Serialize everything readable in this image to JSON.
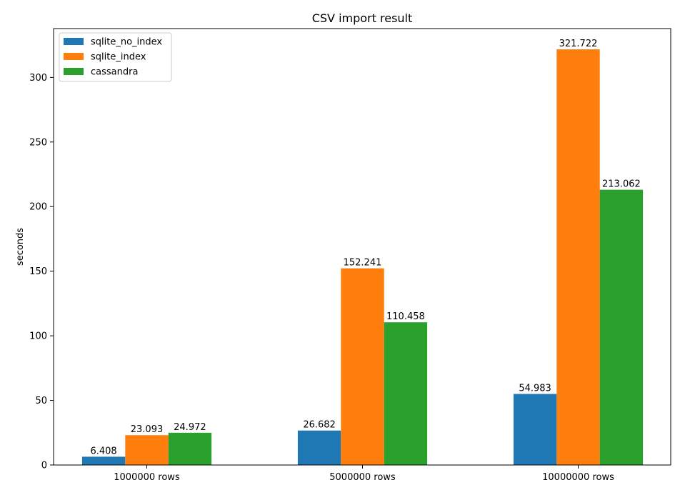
{
  "chart_data": {
    "type": "bar",
    "title": "CSV import result",
    "xlabel": "",
    "ylabel": "seconds",
    "categories": [
      "1000000 rows",
      "5000000 rows",
      "10000000 rows"
    ],
    "series": [
      {
        "name": "sqlite_no_index",
        "color": "#1f77b4",
        "values": [
          6.408,
          26.682,
          54.983
        ]
      },
      {
        "name": "sqlite_index",
        "color": "#ff7f0e",
        "values": [
          23.093,
          152.241,
          321.722
        ]
      },
      {
        "name": "cassandra",
        "color": "#2ca02c",
        "values": [
          24.972,
          110.458,
          213.062
        ]
      }
    ],
    "ylim": [
      0,
      337.8
    ],
    "yticks": [
      0,
      50,
      100,
      150,
      200,
      250,
      300
    ],
    "grid": false,
    "legend": "top-left"
  }
}
